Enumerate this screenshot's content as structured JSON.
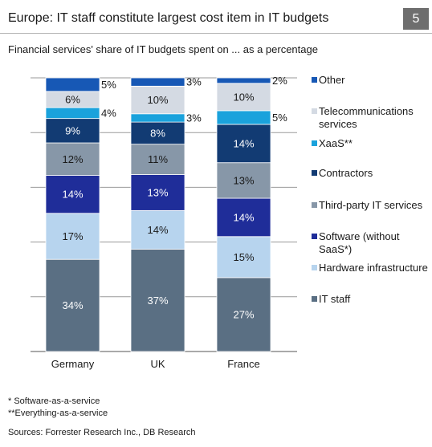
{
  "header": {
    "title": "Europe: IT staff constitute largest cost item in IT budgets",
    "figure_number": "5",
    "subtitle": "Financial services' share of IT budgets spent on ... as a percentage"
  },
  "chart_data": {
    "type": "bar",
    "stacked": true,
    "categories": [
      "Germany",
      "UK",
      "France"
    ],
    "ylim": [
      0,
      100
    ],
    "grid": true,
    "legend_placement": "right",
    "series": [
      {
        "name": "IT staff",
        "color": "#5a6f83",
        "label_color": "#ffffff",
        "values": [
          34,
          37,
          27
        ],
        "labels": [
          "34%",
          "37%",
          "27%"
        ]
      },
      {
        "name": "Hardware infrastructure",
        "color": "#b7d4ee",
        "label_color": "#1a1a1a",
        "values": [
          17,
          14,
          15
        ],
        "labels": [
          "17%",
          "14%",
          "15%"
        ]
      },
      {
        "name": "Software (without SaaS*)",
        "color": "#1f2d99",
        "label_color": "#ffffff",
        "values": [
          14,
          13,
          14
        ],
        "labels": [
          "14%",
          "13%",
          "14%"
        ]
      },
      {
        "name": "Third-party IT services",
        "color": "#8797a8",
        "label_color": "#1a1a1a",
        "values": [
          12,
          11,
          13
        ],
        "labels": [
          "12%",
          "11%",
          "13%"
        ]
      },
      {
        "name": "Contractors",
        "color": "#123b73",
        "label_color": "#ffffff",
        "values": [
          9,
          8,
          14
        ],
        "labels": [
          "9%",
          "8%",
          "14%"
        ]
      },
      {
        "name": "XaaS**",
        "color": "#1aa2dc",
        "label_color": "#1a1a1a",
        "values": [
          4,
          3,
          5
        ],
        "labels": [
          "4%",
          "3%",
          "5%"
        ],
        "label_outside": true
      },
      {
        "name": "Telecommunications services",
        "color": "#d4dae3",
        "label_color": "#1a1a1a",
        "values": [
          6,
          10,
          10
        ],
        "labels": [
          "6%",
          "10%",
          "10%"
        ]
      },
      {
        "name": "Other",
        "color": "#1758b5",
        "label_color": "#1a1a1a",
        "values": [
          5,
          3,
          2
        ],
        "labels": [
          "5%",
          "3%",
          "2%"
        ],
        "label_outside": true
      }
    ]
  },
  "legend": [
    {
      "label": "Other",
      "color": "#1758b5"
    },
    {
      "label": "Telecommunications services",
      "color": "#d4dae3"
    },
    {
      "label": "XaaS**",
      "color": "#1aa2dc"
    },
    {
      "label": "Contractors",
      "color": "#123b73"
    },
    {
      "label": "Third-party IT services",
      "color": "#8797a8"
    },
    {
      "label": "Software (without SaaS*)",
      "color": "#1f2d99"
    },
    {
      "label": "Hardware infrastructure",
      "color": "#b7d4ee"
    },
    {
      "label": "IT staff",
      "color": "#5a6f83"
    }
  ],
  "footnotes": {
    "saas": "* Software-as-a-service",
    "xaas": "**Everything-as-a-service",
    "sources": "Sources: Forrester Research Inc., DB Research"
  }
}
